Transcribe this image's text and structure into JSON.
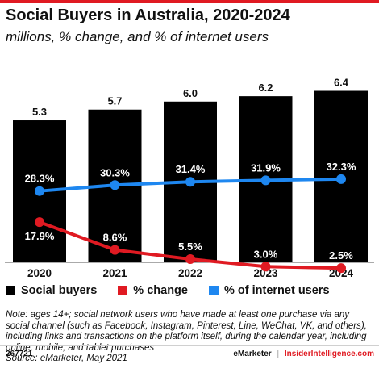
{
  "header": {
    "title": "Social Buyers in Australia, 2020-2024",
    "subtitle": "millions, % change, and % of internet users"
  },
  "chart_data": {
    "type": "bar",
    "categories": [
      "2020",
      "2021",
      "2022",
      "2023",
      "2024"
    ],
    "series": [
      {
        "name": "Social buyers",
        "type": "bar",
        "values": [
          5.3,
          5.7,
          6.0,
          6.2,
          6.4
        ],
        "labels": [
          "5.3",
          "5.7",
          "6.0",
          "6.2",
          "6.4"
        ],
        "color": "#000000"
      },
      {
        "name": "% change",
        "type": "line",
        "values": [
          17.9,
          8.6,
          5.5,
          3.0,
          2.5
        ],
        "labels": [
          "17.9%",
          "8.6%",
          "5.5%",
          "3.0%",
          "2.5%"
        ],
        "color": "#e01a22"
      },
      {
        "name": "% of internet users",
        "type": "line",
        "values": [
          28.3,
          30.3,
          31.4,
          31.9,
          32.3
        ],
        "labels": [
          "28.3%",
          "30.3%",
          "31.4%",
          "31.9%",
          "32.3%"
        ],
        "color": "#1e87f0"
      }
    ],
    "legend_position": "bottom-left",
    "grid": false
  },
  "legend": {
    "items": [
      {
        "label": "Social buyers",
        "color": "#000000"
      },
      {
        "label": "% change",
        "color": "#e01a22"
      },
      {
        "label": "% of internet users",
        "color": "#1e87f0"
      }
    ]
  },
  "notes": {
    "text": "Note: ages 14+; social network users who have made at least one purchase via any social channel (such as Facebook, Instagram, Pinterest, Line, WeChat, VK, and others), including links and transactions on the platform itself, during the calendar year, including online, mobile, and tablet purchases",
    "source": "Source: eMarketer, May 2021"
  },
  "footer": {
    "chart_id": "267721",
    "brand": "eMarketer",
    "separator": "|",
    "brand2": "InsiderIntelligence.com"
  },
  "colors": {
    "accent": "#e01a22",
    "blue": "#1e87f0",
    "bar": "#000000"
  }
}
